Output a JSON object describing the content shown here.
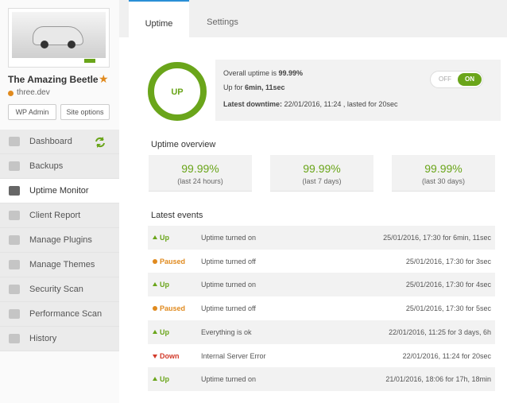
{
  "sidebar": {
    "site_title": "The Amazing Beetle",
    "site_url": "three.dev",
    "buttons": [
      "WP Admin",
      "Site options"
    ],
    "menu": [
      "Dashboard",
      "Backups",
      "Uptime Monitor",
      "Client Report",
      "Manage Plugins",
      "Manage Themes",
      "Security Scan",
      "Performance Scan",
      "History"
    ],
    "active_menu": 2
  },
  "tabs": [
    "Uptime",
    "Settings"
  ],
  "active_tab": 0,
  "status": {
    "badge": "UP",
    "overall_label": "Overall uptime is ",
    "overall_value": "99.99%",
    "up_label": "Up for ",
    "up_value": "6min, 11sec",
    "downtime_label": "Latest downtime:",
    "downtime_value": " 22/01/2016, 11:24 , lasted for 20sec",
    "toggle_off": "OFF",
    "toggle_on": "ON"
  },
  "overview": {
    "title": "Uptime overview",
    "cards": [
      {
        "value": "99.99%",
        "label": "(last 24 hours)"
      },
      {
        "value": "99.99%",
        "label": "(last 7 days)"
      },
      {
        "value": "99.99%",
        "label": "(last 30 days)"
      }
    ]
  },
  "events": {
    "title": "Latest events",
    "rows": [
      {
        "status": "Up",
        "icon": "arrow-up",
        "color": "#6aa51a",
        "message": "Uptime turned on",
        "time": "25/01/2016, 17:30 for 6min, 11sec"
      },
      {
        "status": "Paused",
        "icon": "dot",
        "color": "#e08a1e",
        "message": "Uptime turned off",
        "time": "25/01/2016, 17:30 for 3sec"
      },
      {
        "status": "Up",
        "icon": "arrow-up",
        "color": "#6aa51a",
        "message": "Uptime turned on",
        "time": "25/01/2016, 17:30 for 4sec"
      },
      {
        "status": "Paused",
        "icon": "dot",
        "color": "#e08a1e",
        "message": "Uptime turned off",
        "time": "25/01/2016, 17:30 for 5sec"
      },
      {
        "status": "Up",
        "icon": "arrow-up",
        "color": "#6aa51a",
        "message": "Everything is ok",
        "time": "22/01/2016, 11:25 for 3 days, 6h"
      },
      {
        "status": "Down",
        "icon": "arrow-down",
        "color": "#d23a2a",
        "message": "Internal Server Error",
        "time": "22/01/2016, 11:24 for 20sec"
      },
      {
        "status": "Up",
        "icon": "arrow-up",
        "color": "#6aa51a",
        "message": "Uptime turned on",
        "time": "21/01/2016, 18:06 for 17h, 18min"
      }
    ]
  }
}
